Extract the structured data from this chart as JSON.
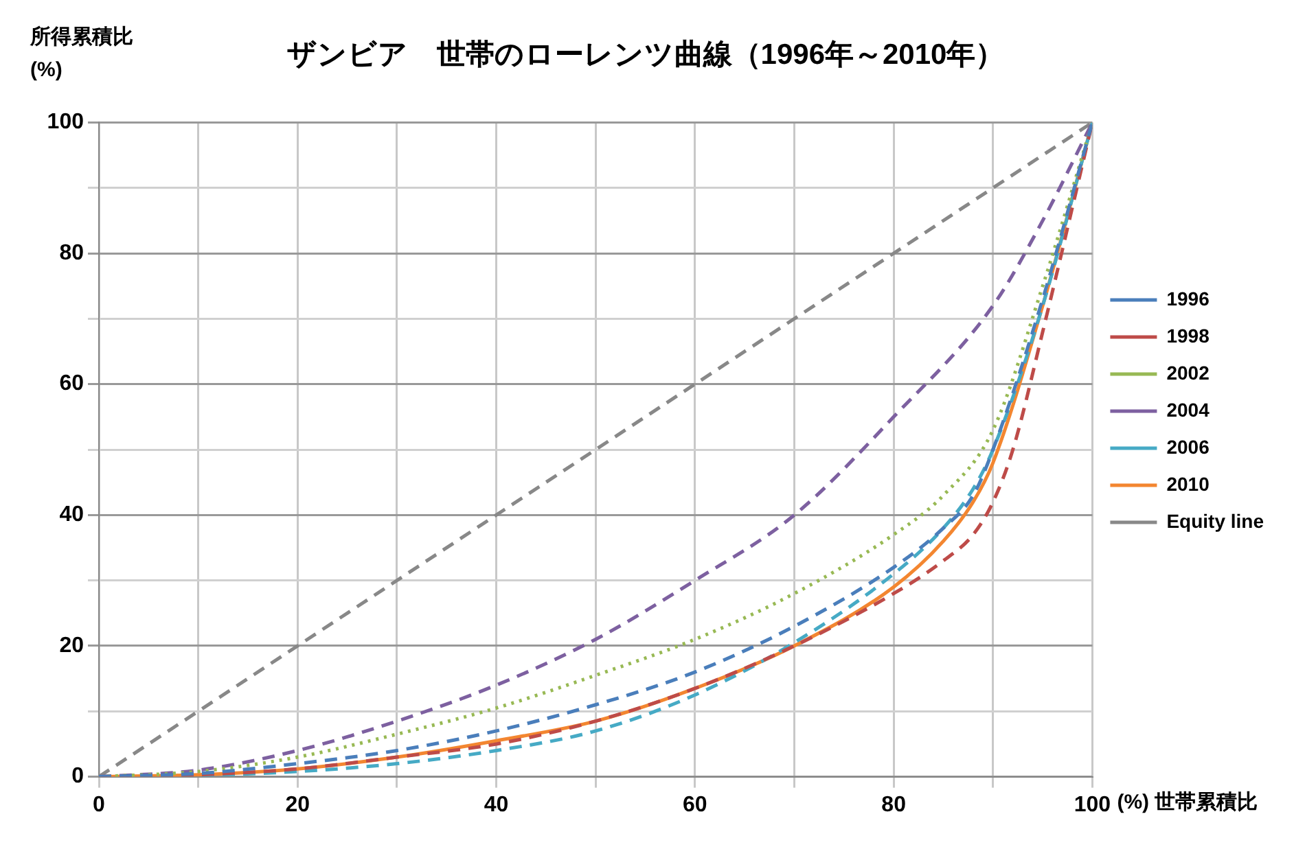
{
  "chart_data": {
    "type": "line",
    "title": "ザンビア　世帯のローレンツ曲線（1996年～2010年）",
    "xlabel": "(%) 世帯累積比",
    "ylabel": "所得累積比\n(%)",
    "xlim": [
      0,
      100
    ],
    "ylim": [
      0,
      100
    ],
    "xticks": [
      0,
      {
        "value": 10,
        "label": null
      },
      20,
      {
        "value": 30,
        "label": null
      },
      40,
      {
        "value": 50,
        "label": null
      },
      60,
      {
        "value": 70,
        "label": null
      },
      80,
      {
        "value": 90,
        "label": null
      },
      100
    ],
    "yticks": [
      0,
      {
        "value": 10,
        "label": null
      },
      20,
      {
        "value": 30,
        "label": null
      },
      40,
      {
        "value": 50,
        "label": null
      },
      60,
      {
        "value": 70,
        "label": null
      },
      80,
      {
        "value": 90,
        "label": null
      },
      100
    ],
    "grid": true,
    "legend": "right",
    "marker": "none",
    "series": [
      {
        "name": "1996",
        "color": "#4a7ebb",
        "line_style": "dashed",
        "x": [
          0,
          10,
          20,
          30,
          40,
          50,
          60,
          70,
          80,
          85,
          88,
          90,
          95,
          100
        ],
        "values": [
          0,
          0.5,
          2,
          4,
          7,
          11,
          16,
          23,
          32,
          38,
          43,
          50,
          73,
          100
        ]
      },
      {
        "name": "1998",
        "color": "#be4b48",
        "line_style": "dashed",
        "x": [
          0,
          10,
          20,
          30,
          40,
          50,
          60,
          70,
          80,
          85,
          88,
          90,
          92,
          95,
          100
        ],
        "values": [
          0,
          0.3,
          1.2,
          3,
          5,
          8.5,
          13.5,
          20,
          28,
          33,
          37,
          42,
          50,
          68,
          100
        ]
      },
      {
        "name": "2002",
        "color": "#98b954",
        "line_style": "dotted",
        "x": [
          0,
          10,
          20,
          30,
          40,
          50,
          60,
          70,
          80,
          85,
          90,
          95,
          100
        ],
        "values": [
          0,
          0.8,
          3,
          6.5,
          10.5,
          15.5,
          21,
          28,
          37,
          43,
          53,
          75,
          100
        ]
      },
      {
        "name": "2004",
        "color": "#7d60a0",
        "line_style": "dashed",
        "x": [
          0,
          10,
          20,
          30,
          40,
          50,
          60,
          70,
          80,
          90,
          95,
          100
        ],
        "values": [
          0,
          1,
          4,
          8.5,
          14,
          21,
          30,
          40,
          55,
          72,
          85,
          100
        ]
      },
      {
        "name": "2006",
        "color": "#46aac5",
        "line_style": "dashed",
        "x": [
          0,
          10,
          20,
          30,
          40,
          50,
          60,
          70,
          80,
          85,
          88,
          90,
          95,
          100
        ],
        "values": [
          0,
          0.2,
          0.8,
          2,
          4,
          7,
          12.5,
          20.5,
          31,
          38,
          44,
          50,
          72,
          100
        ]
      },
      {
        "name": "2010",
        "color": "#f38630",
        "line_style": "solid",
        "x": [
          0,
          10,
          20,
          30,
          40,
          50,
          60,
          70,
          80,
          85,
          88,
          90,
          95,
          100
        ],
        "values": [
          0,
          0.3,
          1.2,
          3,
          5.5,
          8.5,
          13.5,
          20,
          29,
          36,
          42,
          48,
          72,
          100
        ]
      },
      {
        "name": "Equity line",
        "color": "#888888",
        "line_style": "dashed",
        "x": [
          0,
          100
        ],
        "values": [
          0,
          100
        ]
      }
    ]
  }
}
